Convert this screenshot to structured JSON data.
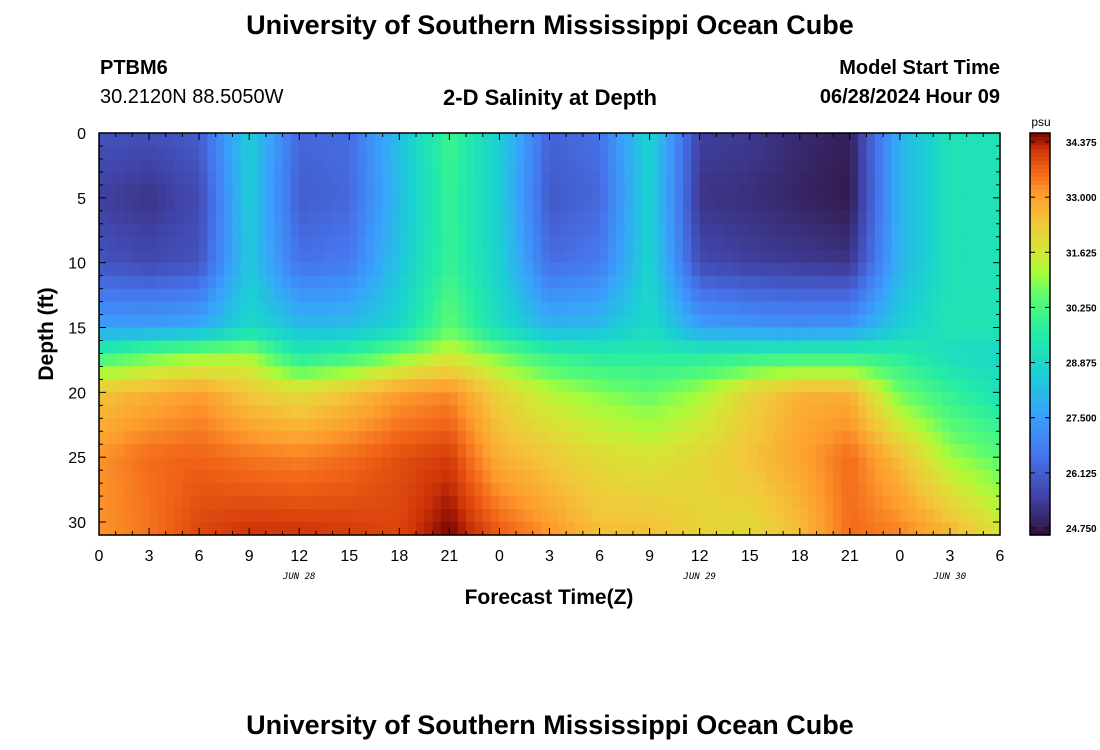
{
  "header": {
    "title": "University of Southern Mississippi Ocean Cube",
    "station_id": "PTBM6",
    "station_coords": "30.2120N  88.5050W",
    "plot_title": "2-D Salinity at Depth",
    "model_start_label": "Model Start Time",
    "model_start_value": "06/28/2024 Hour 09"
  },
  "footer": {
    "title": "University of Southern Mississippi Ocean Cube"
  },
  "chart_data": {
    "type": "heatmap",
    "title": "2-D Salinity at Depth",
    "xlabel": "Forecast Time(Z)",
    "ylabel": "Depth (ft)",
    "x_tick_labels": [
      "0",
      "3",
      "6",
      "9",
      "12",
      "15",
      "18",
      "21",
      "0",
      "3",
      "6",
      "9",
      "12",
      "15",
      "18",
      "21",
      "0",
      "3",
      "6"
    ],
    "x_tick_hours": [
      0,
      3,
      6,
      9,
      12,
      15,
      18,
      21,
      24,
      27,
      30,
      33,
      36,
      39,
      42,
      45,
      48,
      51,
      54
    ],
    "x_range_hours": [
      0,
      54
    ],
    "date_labels": [
      {
        "text": "JUN 28",
        "hour": 12
      },
      {
        "text": "JUN 29",
        "hour": 36
      },
      {
        "text": "JUN 30",
        "hour": 51
      }
    ],
    "y_ticks": [
      0,
      5,
      10,
      15,
      20,
      25,
      30
    ],
    "y_range": [
      0,
      31
    ],
    "y_inverted": true,
    "colorbar": {
      "unit_label": "psu",
      "min": 24.75,
      "max": 34.375,
      "ticks": [
        "34.375",
        "33.000",
        "31.625",
        "30.250",
        "28.875",
        "27.500",
        "26.125",
        "24.750"
      ],
      "tick_values": [
        34.375,
        33.0,
        31.625,
        30.25,
        28.875,
        27.5,
        26.125,
        24.75
      ]
    },
    "grid_hours": [
      0,
      3,
      6,
      9,
      12,
      15,
      18,
      21,
      24,
      27,
      30,
      33,
      36,
      39,
      42,
      45,
      48,
      51,
      54
    ],
    "grid_depths": [
      0,
      5,
      10,
      15,
      17,
      20,
      25,
      31
    ],
    "salinity": [
      [
        26.0,
        25.9,
        26.2,
        28.6,
        26.4,
        26.5,
        28.3,
        30.0,
        28.6,
        26.3,
        26.6,
        28.8,
        25.6,
        25.5,
        25.2,
        25.0,
        28.0,
        29.2,
        29.2
      ],
      [
        25.6,
        25.4,
        25.8,
        28.6,
        26.2,
        26.4,
        28.2,
        29.9,
        28.6,
        26.1,
        26.4,
        28.8,
        25.4,
        25.3,
        25.1,
        24.9,
        28.0,
        29.2,
        29.2
      ],
      [
        26.0,
        25.8,
        26.0,
        28.5,
        26.6,
        26.8,
        28.4,
        29.9,
        28.7,
        26.5,
        26.8,
        28.8,
        25.8,
        25.6,
        25.5,
        25.4,
        28.0,
        29.2,
        29.2
      ],
      [
        27.6,
        27.6,
        27.8,
        28.9,
        28.2,
        28.2,
        28.8,
        30.5,
        29.0,
        28.0,
        28.2,
        29.0,
        27.6,
        27.4,
        27.3,
        27.4,
        28.6,
        29.3,
        29.3
      ],
      [
        29.8,
        30.4,
        30.8,
        31.0,
        29.4,
        29.8,
        30.6,
        31.4,
        30.6,
        29.8,
        29.5,
        29.5,
        29.5,
        29.6,
        29.7,
        29.7,
        29.6,
        29.0,
        28.8
      ],
      [
        32.3,
        32.6,
        32.9,
        32.2,
        31.8,
        32.3,
        32.9,
        33.1,
        32.0,
        31.2,
        30.8,
        30.5,
        31.0,
        32.0,
        32.6,
        32.6,
        30.6,
        29.8,
        29.2
      ],
      [
        33.0,
        33.4,
        33.5,
        33.3,
        33.2,
        33.4,
        33.7,
        33.9,
        32.6,
        32.2,
        31.8,
        31.6,
        31.9,
        32.3,
        32.8,
        33.4,
        32.4,
        31.0,
        30.4
      ],
      [
        33.0,
        33.3,
        33.8,
        34.0,
        34.0,
        33.9,
        33.8,
        34.4,
        33.6,
        33.0,
        32.4,
        32.4,
        32.0,
        31.8,
        32.4,
        33.4,
        33.2,
        32.6,
        31.6
      ]
    ]
  }
}
